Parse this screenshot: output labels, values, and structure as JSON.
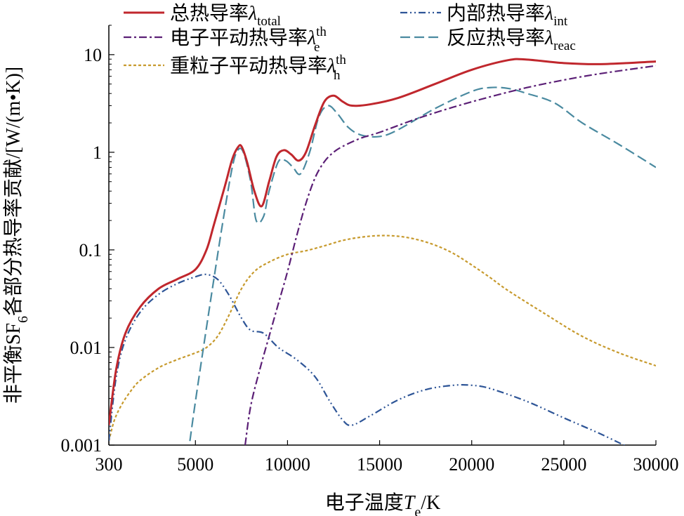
{
  "chart_data": {
    "type": "line",
    "title": "",
    "xlabel": {
      "main": "电子温度",
      "var": "T",
      "sub": "e",
      "unit": "/K"
    },
    "ylabel": {
      "main": "非平衡SF",
      "sub": "6",
      "rest": "各部分热导率贡献/[W/(m•K)]"
    },
    "x_scale": "linear",
    "y_scale": "log",
    "xlim": [
      300,
      30000
    ],
    "ylim": [
      0.001,
      20
    ],
    "x_ticks": [
      {
        "value": 300,
        "label": "300"
      },
      {
        "value": 5000,
        "label": "5000"
      },
      {
        "value": 10000,
        "label": "10000"
      },
      {
        "value": 15000,
        "label": "15000"
      },
      {
        "value": 20000,
        "label": "20000"
      },
      {
        "value": 25000,
        "label": "25000"
      },
      {
        "value": 30000,
        "label": "30000"
      }
    ],
    "y_ticks": [
      {
        "value": 0.001,
        "label": "0.001"
      },
      {
        "value": 0.01,
        "label": "0.01"
      },
      {
        "value": 0.1,
        "label": "0.1"
      },
      {
        "value": 1,
        "label": "1"
      },
      {
        "value": 10,
        "label": "10"
      }
    ],
    "legend_position": "top",
    "series": [
      {
        "id": "total",
        "name": "总热导率",
        "symbol": "λ",
        "sub": "total",
        "sup": "",
        "color": "#c0272d",
        "dash": "",
        "width": 3,
        "x": [
          300,
          700,
          1200,
          2000,
          3000,
          4000,
          5000,
          5600,
          6000,
          6600,
          7000,
          7300,
          7500,
          7800,
          8200,
          8600,
          9000,
          9400,
          9800,
          10200,
          10600,
          11000,
          11500,
          12000,
          12500,
          13000,
          13500,
          14500,
          16000,
          18000,
          20000,
          22000,
          23000,
          25000,
          27000,
          30000
        ],
        "y": [
          0.0016,
          0.006,
          0.014,
          0.026,
          0.04,
          0.05,
          0.063,
          0.1,
          0.18,
          0.45,
          0.85,
          1.12,
          1.15,
          0.8,
          0.4,
          0.28,
          0.5,
          0.9,
          1.05,
          0.95,
          0.82,
          1.0,
          1.9,
          3.3,
          3.8,
          3.3,
          3.0,
          3.1,
          3.6,
          5.0,
          7.0,
          8.8,
          8.9,
          8.2,
          8.0,
          8.5
        ]
      },
      {
        "id": "int",
        "name": "内部热导率",
        "symbol": "λ",
        "sub": "int",
        "sup": "",
        "color": "#2e5597",
        "dash": "10 4 2 4 2 4",
        "width": 2.2,
        "x": [
          300,
          700,
          1200,
          2000,
          3000,
          4000,
          5000,
          5600,
          6200,
          6800,
          7500,
          8000,
          8700,
          9500,
          10500,
          11500,
          12300,
          13000,
          13500,
          14500,
          16000,
          17500,
          19000,
          20000,
          21000,
          23000,
          25000,
          27000,
          28500
        ],
        "y": [
          0.0011,
          0.005,
          0.012,
          0.023,
          0.035,
          0.045,
          0.053,
          0.056,
          0.05,
          0.035,
          0.02,
          0.015,
          0.014,
          0.01,
          0.0075,
          0.005,
          0.0028,
          0.0018,
          0.0016,
          0.002,
          0.0029,
          0.0037,
          0.0041,
          0.0041,
          0.0038,
          0.0028,
          0.0019,
          0.0013,
          0.00095
        ]
      },
      {
        "id": "e",
        "name": "电子平动热导率",
        "symbol": "λ",
        "sub": "e",
        "sup": "th",
        "color": "#5b1f76",
        "dash": "11 4 3 4",
        "width": 2.2,
        "x": [
          7700,
          8000,
          8500,
          9000,
          9500,
          10000,
          10500,
          11000,
          11500,
          12000,
          12500,
          13000,
          14000,
          15000,
          17000,
          19000,
          21000,
          23000,
          25000,
          27000,
          30000
        ],
        "y": [
          0.001,
          0.0025,
          0.006,
          0.013,
          0.028,
          0.06,
          0.14,
          0.3,
          0.55,
          0.8,
          1.0,
          1.15,
          1.4,
          1.6,
          2.2,
          2.9,
          3.7,
          4.6,
          5.5,
          6.4,
          7.7
        ]
      },
      {
        "id": "h",
        "name": "重粒子平动热导率",
        "symbol": "λ",
        "sub": "h",
        "sup": "th",
        "color": "#c79a2d",
        "dash": "4 3",
        "width": 2.2,
        "x": [
          300,
          600,
          1000,
          1500,
          2000,
          3000,
          4000,
          5000,
          5600,
          6200,
          6800,
          7500,
          8200,
          9000,
          10000,
          11000,
          12000,
          13000,
          14000,
          15000,
          16000,
          17000,
          18000,
          19000,
          20000,
          21000,
          22000,
          24000,
          26000,
          28000,
          30000
        ],
        "y": [
          0.0011,
          0.0018,
          0.0026,
          0.0036,
          0.0046,
          0.0062,
          0.0075,
          0.0088,
          0.01,
          0.013,
          0.021,
          0.04,
          0.06,
          0.075,
          0.09,
          0.098,
          0.11,
          0.125,
          0.135,
          0.14,
          0.138,
          0.128,
          0.112,
          0.092,
          0.07,
          0.052,
          0.038,
          0.022,
          0.013,
          0.0088,
          0.0065
        ]
      },
      {
        "id": "reac",
        "name": "反应热导率",
        "symbol": "λ",
        "sub": "reac",
        "sup": "",
        "color": "#4a8aa0",
        "dash": "14 6",
        "width": 2.2,
        "x": [
          4700,
          5000,
          5500,
          6000,
          6500,
          7000,
          7300,
          7600,
          8000,
          8300,
          8700,
          9000,
          9500,
          9900,
          10300,
          10700,
          11200,
          11700,
          12200,
          12700,
          13300,
          14000,
          15000,
          16000,
          18000,
          20000,
          21000,
          22000,
          23000,
          24500,
          26000,
          28000,
          30000
        ],
        "y": [
          0.0011,
          0.0028,
          0.012,
          0.05,
          0.2,
          0.7,
          1.05,
          1.0,
          0.5,
          0.2,
          0.22,
          0.4,
          0.8,
          0.82,
          0.7,
          0.6,
          1.0,
          2.3,
          3.0,
          2.5,
          1.8,
          1.5,
          1.45,
          1.7,
          2.8,
          4.2,
          4.6,
          4.5,
          4.0,
          3.2,
          2.0,
          1.2,
          0.7
        ]
      }
    ]
  }
}
